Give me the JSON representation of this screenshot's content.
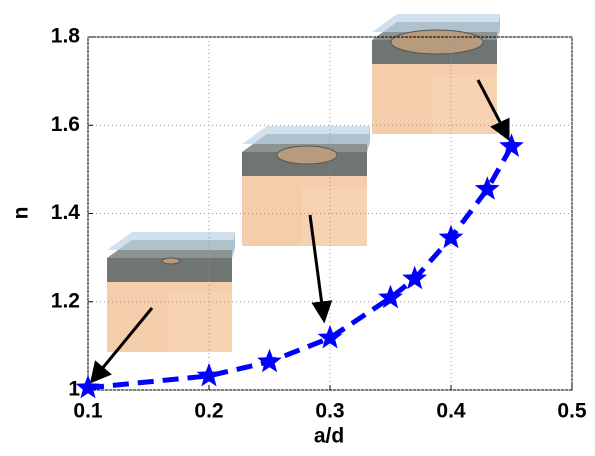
{
  "chart_data": {
    "type": "line",
    "xlabel": "a/d",
    "ylabel": "n",
    "x": [
      0.1,
      0.2,
      0.25,
      0.3,
      0.35,
      0.37,
      0.4,
      0.43,
      0.45
    ],
    "values": [
      1.005,
      1.032,
      1.064,
      1.118,
      1.209,
      1.252,
      1.345,
      1.455,
      1.552
    ],
    "color": "#0000ff",
    "line_style": "dashed",
    "marker": "star",
    "xlim": [
      0.1,
      0.5
    ],
    "xticks": [
      0.1,
      0.2,
      0.3,
      0.4,
      0.5
    ],
    "ylim": [
      1,
      1.8
    ],
    "yticks": [
      1,
      1.2,
      1.4,
      1.6,
      1.8
    ],
    "grid": true
  }
}
